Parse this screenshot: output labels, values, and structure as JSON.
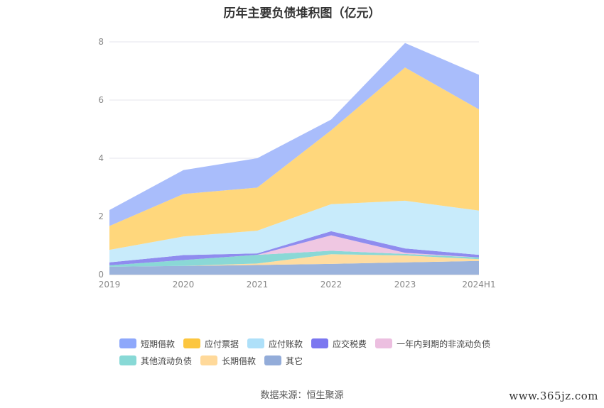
{
  "chart_data": {
    "type": "area",
    "title": "历年主要负债堆积图（亿元）",
    "categories": [
      "2019",
      "2020",
      "2021",
      "2022",
      "2023",
      "2024H1"
    ],
    "ylim": [
      0,
      8
    ],
    "yticks": [
      "0",
      "2",
      "4",
      "6",
      "8"
    ],
    "stacked": true,
    "grid": true,
    "legend_position": "bottom",
    "series": [
      {
        "name": "其它",
        "color": "#9bb3dc",
        "values": [
          0.27,
          0.3,
          0.33,
          0.37,
          0.42,
          0.47
        ]
      },
      {
        "name": "长期借款",
        "color": "#ffdca0",
        "values": [
          0.0,
          0.0,
          0.05,
          0.33,
          0.24,
          0.06
        ]
      },
      {
        "name": "其他流动负债",
        "color": "#8ad8d6",
        "values": [
          0.05,
          0.2,
          0.3,
          0.12,
          0.05,
          0.06
        ]
      },
      {
        "name": "一年内到期的非流动负债",
        "color": "#efc7e2",
        "values": [
          0.0,
          0.0,
          0.0,
          0.53,
          0.04,
          0.0
        ]
      },
      {
        "name": "应交税费",
        "color": "#8f8cef",
        "values": [
          0.1,
          0.17,
          0.05,
          0.14,
          0.15,
          0.09
        ]
      },
      {
        "name": "应付账款",
        "color": "#c8ebfb",
        "values": [
          0.43,
          0.64,
          0.78,
          0.93,
          1.64,
          1.52
        ]
      },
      {
        "name": "应付票据",
        "color": "#ffd77c",
        "values": [
          0.82,
          1.46,
          1.48,
          2.54,
          4.58,
          3.48
        ]
      },
      {
        "name": "短期借款",
        "color": "#a9bdfb",
        "values": [
          0.55,
          0.82,
          1.01,
          0.37,
          0.84,
          1.19
        ]
      }
    ]
  },
  "legend": [
    {
      "label": "短期借款",
      "color": "#8ea8fb"
    },
    {
      "label": "应付票据",
      "color": "#fcc63f"
    },
    {
      "label": "应付账款",
      "color": "#aee0f9"
    },
    {
      "label": "应交税费",
      "color": "#7b77f0"
    },
    {
      "label": "一年内到期的非流动负债",
      "color": "#ecbfe0"
    },
    {
      "label": "其他流动负债",
      "color": "#88d9d6"
    },
    {
      "label": "长期借款",
      "color": "#ffd99a"
    },
    {
      "label": "其它",
      "color": "#93acd9"
    }
  ],
  "source": "数据来源：恒生聚源",
  "watermark": "www.365jz.com"
}
